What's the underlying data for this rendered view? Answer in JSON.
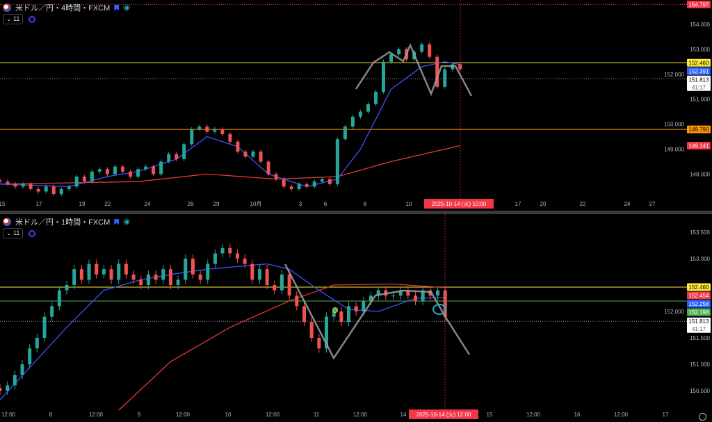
{
  "panes": [
    {
      "title": "米ドル／円・4時間・FXCM",
      "indicator_count": "11",
      "price_ticks": [
        "154.000",
        "153.000",
        "152.000",
        "151.000",
        "150.000",
        "149.000",
        "148.000"
      ],
      "time_ticks": [
        "15",
        "17",
        "19",
        "22",
        "24",
        "26",
        "29",
        "10月",
        "3",
        "6",
        "8",
        "10",
        "17",
        "20",
        "22",
        "24",
        "27"
      ],
      "crosshair_time": "2025-10-14 (火)  10:00",
      "badges": [
        {
          "value": "154.797",
          "color": "#f23645",
          "line": "dotted"
        },
        {
          "value": "152.460",
          "color": "#ffeb3b",
          "line": "solid",
          "text": "#000"
        },
        {
          "value": "152.391",
          "color": "#2962ff",
          "line": "none"
        },
        {
          "value": "151.813",
          "color": "#ffffff",
          "line": "dotted",
          "text": "#000",
          "countdown": "41:17"
        },
        {
          "value": "149.790",
          "color": "#ff9800",
          "line": "solid",
          "text": "#000"
        },
        {
          "value": "149.141",
          "color": "#f23645",
          "line": "none"
        }
      ]
    },
    {
      "title": "米ドル／円・1時間・FXCM",
      "indicator_count": "11",
      "price_ticks": [
        "153.500",
        "153.000",
        "152.000",
        "151.500",
        "151.000",
        "150.500"
      ],
      "time_ticks": [
        "12:00",
        "8",
        "12:00",
        "9",
        "12:00",
        "10",
        "12:00",
        "11",
        "12:00",
        "14",
        "15",
        "12:00",
        "16",
        "12:00",
        "17"
      ],
      "crosshair_time": "2025-10-14 (火)  12:00",
      "badges": [
        {
          "value": "152.460",
          "color": "#ffeb3b",
          "line": "solid",
          "text": "#000"
        },
        {
          "value": "152.454",
          "color": "#f23645",
          "line": "none"
        },
        {
          "value": "152.258",
          "color": "#2962ff",
          "line": "none"
        },
        {
          "value": "152.198",
          "color": "#4caf50",
          "line": "solid"
        },
        {
          "value": "151.813",
          "color": "#ffffff",
          "line": "dotted",
          "text": "#000",
          "countdown": "41:17"
        }
      ]
    }
  ],
  "chart_data": [
    {
      "type": "candlestick",
      "title": "米ドル／円・4時間・FXCM",
      "ylim": [
        147.05,
        154.8
      ],
      "closes": [
        147.7,
        147.6,
        147.5,
        147.6,
        147.4,
        147.3,
        147.5,
        147.2,
        147.4,
        147.5,
        147.9,
        147.7,
        148.1,
        148.2,
        148.0,
        148.3,
        148.1,
        147.9,
        148.2,
        148.3,
        148.0,
        148.5,
        148.8,
        148.6,
        149.2,
        149.8,
        149.9,
        149.7,
        149.8,
        149.6,
        149.3,
        148.9,
        148.7,
        148.9,
        148.5,
        148.0,
        147.8,
        147.5,
        147.4,
        147.6,
        147.5,
        147.7,
        147.8,
        147.6,
        149.4,
        149.9,
        150.3,
        150.5,
        150.8,
        151.3,
        152.5,
        152.8,
        153.0,
        152.6,
        152.9,
        153.2,
        152.7,
        151.5,
        152.2,
        152.4,
        152.2
      ],
      "ma_fast": [
        [
          0,
          147.6
        ],
        [
          9,
          147.5
        ],
        [
          14,
          147.9
        ],
        [
          18,
          148.1
        ],
        [
          23,
          148.6
        ],
        [
          27,
          149.5
        ],
        [
          31,
          149.1
        ],
        [
          35,
          148.0
        ],
        [
          40,
          147.5
        ],
        [
          44,
          147.8
        ],
        [
          47,
          149.0
        ],
        [
          51,
          151.4
        ],
        [
          55,
          152.3
        ],
        [
          58,
          152.5
        ],
        [
          60,
          152.39
        ]
      ],
      "ma_slow": [
        [
          0,
          147.6
        ],
        [
          18,
          147.7
        ],
        [
          27,
          148.0
        ],
        [
          36,
          147.8
        ],
        [
          44,
          147.9
        ],
        [
          51,
          148.5
        ],
        [
          60,
          149.14
        ]
      ]
    },
    {
      "type": "candlestick",
      "title": "米ドル／円・1時間・FXCM",
      "ylim": [
        150.2,
        153.85
      ],
      "closes": [
        150.5,
        150.6,
        150.8,
        151.0,
        151.3,
        151.5,
        151.9,
        152.1,
        152.4,
        152.5,
        152.8,
        152.6,
        152.9,
        152.7,
        152.8,
        152.6,
        152.9,
        152.7,
        152.6,
        152.5,
        152.7,
        152.6,
        152.8,
        152.5,
        152.6,
        153.0,
        152.7,
        152.6,
        152.9,
        153.1,
        153.2,
        153.1,
        153.0,
        152.9,
        152.6,
        152.8,
        152.5,
        152.4,
        152.7,
        152.3,
        152.1,
        151.8,
        151.5,
        151.3,
        151.9,
        152.0,
        151.8,
        152.1,
        152.0,
        152.2,
        152.3,
        152.4,
        152.3,
        152.3,
        152.4,
        152.3,
        152.2,
        152.4,
        152.3,
        152.4,
        151.9
      ],
      "ma_fast": [
        [
          0,
          150.33
        ],
        [
          9,
          151.7
        ],
        [
          14,
          152.4
        ],
        [
          19,
          152.6
        ],
        [
          23,
          152.7
        ],
        [
          28,
          152.8
        ],
        [
          36,
          152.9
        ],
        [
          39,
          152.8
        ],
        [
          43,
          152.4
        ],
        [
          47,
          152.04
        ],
        [
          51,
          152.0
        ],
        [
          56,
          152.25
        ],
        [
          60,
          152.26
        ]
      ],
      "ma_slow": [
        [
          16,
          150.13
        ],
        [
          23,
          151.05
        ],
        [
          31,
          151.7
        ],
        [
          39,
          152.2
        ],
        [
          45,
          152.5
        ],
        [
          53,
          152.52
        ],
        [
          60,
          152.45
        ]
      ]
    }
  ]
}
